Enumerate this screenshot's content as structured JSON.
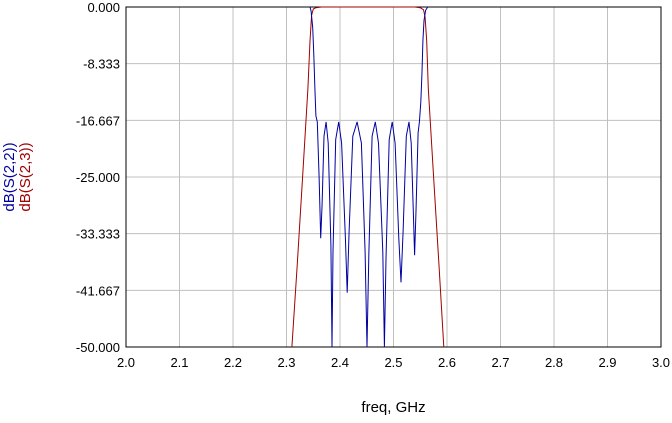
{
  "chart_data": {
    "type": "line",
    "xlabel": "freq, GHz",
    "xlim": [
      2.0,
      3.0
    ],
    "ylim": [
      -50.0,
      0.0
    ],
    "x_ticks": [
      "2.0",
      "2.1",
      "2.2",
      "2.3",
      "2.4",
      "2.5",
      "2.6",
      "2.7",
      "2.8",
      "2.9",
      "3.0"
    ],
    "x_tick_values": [
      2.0,
      2.1,
      2.2,
      2.3,
      2.4,
      2.5,
      2.6,
      2.7,
      2.8,
      2.9,
      3.0
    ],
    "y_ticks": [
      "0.000",
      "-8.333",
      "-16.667",
      "-25.000",
      "-33.333",
      "-41.667",
      "-50.000"
    ],
    "y_tick_values": [
      0.0,
      -8.333,
      -16.667,
      -25.0,
      -33.333,
      -41.667,
      -50.0
    ],
    "grid": true,
    "series": [
      {
        "name": "dB(S(2,2))",
        "color": "#0000a0",
        "points": [
          [
            2.344,
            0.0
          ],
          [
            2.346,
            -0.6
          ],
          [
            2.349,
            -3.0
          ],
          [
            2.351,
            -7.0
          ],
          [
            2.353,
            -12.0
          ],
          [
            2.355,
            -16.0
          ],
          [
            2.3575,
            -16.9
          ],
          [
            2.361,
            -25.0
          ],
          [
            2.364,
            -34.0
          ],
          [
            2.3665,
            -29.0
          ],
          [
            2.37,
            -19.0
          ],
          [
            2.374,
            -16.9
          ],
          [
            2.378,
            -20.0
          ],
          [
            2.383,
            -35.0
          ],
          [
            2.385,
            -50.0
          ],
          [
            2.387,
            -36.0
          ],
          [
            2.392,
            -19.5
          ],
          [
            2.3975,
            -16.9
          ],
          [
            2.403,
            -20.0
          ],
          [
            2.41,
            -34.0
          ],
          [
            2.4135,
            -42.0
          ],
          [
            2.417,
            -33.0
          ],
          [
            2.424,
            -19.0
          ],
          [
            2.432,
            -16.9
          ],
          [
            2.44,
            -20.0
          ],
          [
            2.447,
            -36.0
          ],
          [
            2.4505,
            -50.0
          ],
          [
            2.454,
            -36.0
          ],
          [
            2.46,
            -19.0
          ],
          [
            2.466,
            -16.9
          ],
          [
            2.472,
            -20.0
          ],
          [
            2.48,
            -36.0
          ],
          [
            2.483,
            -50.0
          ],
          [
            2.486,
            -37.0
          ],
          [
            2.492,
            -19.5
          ],
          [
            2.4975,
            -16.9
          ],
          [
            2.503,
            -20.0
          ],
          [
            2.51,
            -34.0
          ],
          [
            2.514,
            -40.5
          ],
          [
            2.518,
            -33.0
          ],
          [
            2.524,
            -19.0
          ],
          [
            2.529,
            -16.9
          ],
          [
            2.533,
            -20.0
          ],
          [
            2.537,
            -30.0
          ],
          [
            2.5395,
            -36.5
          ],
          [
            2.542,
            -30.0
          ],
          [
            2.546,
            -18.5
          ],
          [
            2.5485,
            -16.9
          ],
          [
            2.551,
            -14.0
          ],
          [
            2.553,
            -10.0
          ],
          [
            2.555,
            -5.0
          ],
          [
            2.557,
            -2.0
          ],
          [
            2.56,
            -0.5
          ],
          [
            2.564,
            0.0
          ]
        ]
      },
      {
        "name": "dB(S(2,3))",
        "color": "#a00000",
        "points": [
          [
            2.31,
            -50.0
          ],
          [
            2.32,
            -38.0
          ],
          [
            2.33,
            -25.0
          ],
          [
            2.34,
            -12.0
          ],
          [
            2.344,
            -5.0
          ],
          [
            2.347,
            -1.2
          ],
          [
            2.35,
            -0.3
          ],
          [
            2.355,
            -0.1
          ],
          [
            2.365,
            0.0
          ],
          [
            2.54,
            0.0
          ],
          [
            2.55,
            -0.1
          ],
          [
            2.556,
            -0.4
          ],
          [
            2.559,
            -1.5
          ],
          [
            2.562,
            -5.0
          ],
          [
            2.565,
            -12.0
          ],
          [
            2.575,
            -25.0
          ],
          [
            2.585,
            -38.0
          ],
          [
            2.594,
            -50.0
          ]
        ]
      }
    ]
  }
}
